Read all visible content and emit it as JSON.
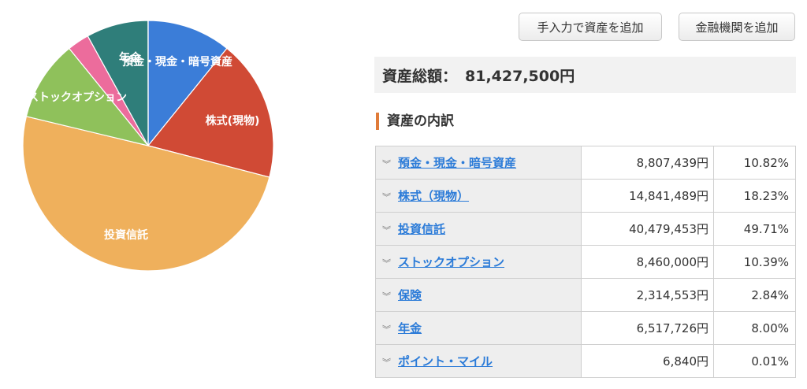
{
  "buttons": {
    "manual_add": "手入力で資産を追加",
    "institution_add": "金融機関を追加"
  },
  "summary": {
    "total_label": "資産総額：",
    "total_value": "81,427,500円"
  },
  "breakdown": {
    "heading": "資産の内訳",
    "rows": [
      {
        "category": "預金・現金・暗号資産",
        "amount": "8,807,439円",
        "percent": "10.82%"
      },
      {
        "category": "株式（現物）",
        "amount": "14,841,489円",
        "percent": "18.23%"
      },
      {
        "category": "投資信託",
        "amount": "40,479,453円",
        "percent": "49.71%"
      },
      {
        "category": "ストックオプション",
        "amount": "8,460,000円",
        "percent": "10.39%"
      },
      {
        "category": "保険",
        "amount": "2,314,553円",
        "percent": "2.84%"
      },
      {
        "category": "年金",
        "amount": "6,517,726円",
        "percent": "8.00%"
      },
      {
        "category": "ポイント・マイル",
        "amount": "6,840円",
        "percent": "0.01%"
      }
    ]
  },
  "chart_data": {
    "type": "pie",
    "slices": [
      {
        "label": "預金・現金・暗号資産",
        "value": 10.82,
        "color": "#3b7dd8"
      },
      {
        "label": "株式(現物)",
        "value": 18.23,
        "color": "#d04a35"
      },
      {
        "label": "投資信託",
        "value": 49.71,
        "color": "#efb05c"
      },
      {
        "label": "ストックオプション",
        "value": 10.39,
        "color": "#8fc15b"
      },
      {
        "label": "保険",
        "value": 2.84,
        "color": "#ec6c9c"
      },
      {
        "label": "年金",
        "value": 8.0,
        "color": "#2f7e7a"
      },
      {
        "label": "ポイント・マイル",
        "value": 0.01,
        "color": "#888888"
      }
    ],
    "label_texts": [
      "預金・現金・暗号資産",
      "株式(現物)",
      "投資信託",
      "ストックオプション",
      "年金"
    ]
  }
}
